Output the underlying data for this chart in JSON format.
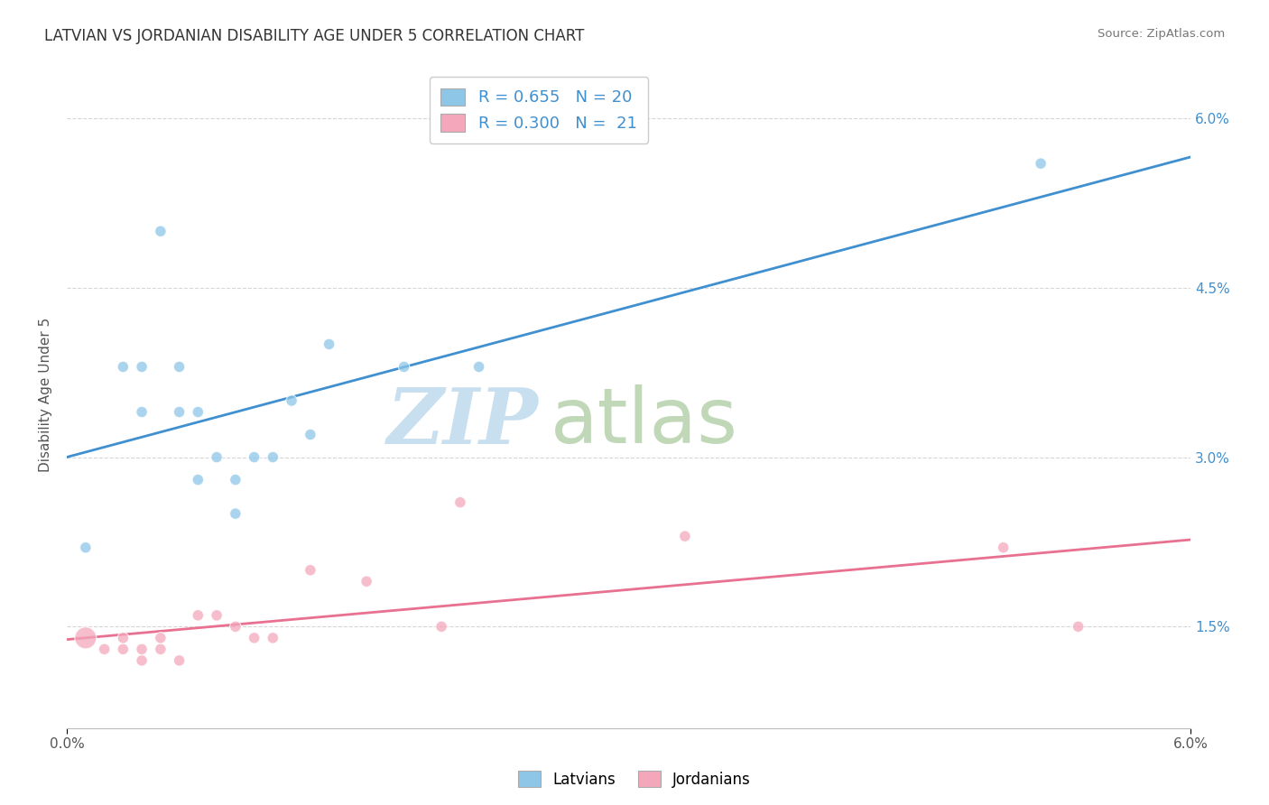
{
  "title": "LATVIAN VS JORDANIAN DISABILITY AGE UNDER 5 CORRELATION CHART",
  "source": "Source: ZipAtlas.com",
  "ylabel": "Disability Age Under 5",
  "latvian_color": "#8ec6e8",
  "jordanian_color": "#f4a7bb",
  "latvian_line_color": "#4090d0",
  "jordanian_line_color": "#e87090",
  "legend_latvian_label": "R = 0.655   N = 20",
  "legend_jordanian_label": "R = 0.300   N =  21",
  "bottom_legend_latvian": "Latvians",
  "bottom_legend_jordanian": "Jordanians",
  "latvian_x": [
    0.001,
    0.003,
    0.004,
    0.004,
    0.005,
    0.006,
    0.006,
    0.007,
    0.007,
    0.008,
    0.009,
    0.009,
    0.01,
    0.011,
    0.012,
    0.013,
    0.014,
    0.018,
    0.022,
    0.052
  ],
  "latvian_y": [
    0.022,
    0.038,
    0.038,
    0.034,
    0.05,
    0.034,
    0.038,
    0.034,
    0.028,
    0.03,
    0.028,
    0.025,
    0.03,
    0.03,
    0.035,
    0.032,
    0.04,
    0.038,
    0.038,
    0.056
  ],
  "latvian_sizes": [
    80,
    80,
    80,
    80,
    80,
    80,
    80,
    80,
    80,
    80,
    80,
    80,
    80,
    80,
    80,
    80,
    80,
    80,
    80,
    80
  ],
  "jordanian_x": [
    0.001,
    0.002,
    0.003,
    0.003,
    0.004,
    0.004,
    0.005,
    0.005,
    0.006,
    0.007,
    0.008,
    0.009,
    0.01,
    0.011,
    0.013,
    0.016,
    0.02,
    0.021,
    0.033,
    0.05,
    0.054
  ],
  "jordanian_y": [
    0.014,
    0.013,
    0.013,
    0.014,
    0.012,
    0.013,
    0.013,
    0.014,
    0.012,
    0.016,
    0.016,
    0.015,
    0.014,
    0.014,
    0.02,
    0.019,
    0.015,
    0.026,
    0.023,
    0.022,
    0.015
  ],
  "jordanian_sizes": [
    300,
    80,
    80,
    80,
    80,
    80,
    80,
    80,
    80,
    80,
    80,
    80,
    80,
    80,
    80,
    80,
    80,
    80,
    80,
    80,
    80
  ],
  "xmin": 0.0,
  "xmax": 0.06,
  "ymin": 0.006,
  "ymax": 0.065,
  "ytick_vals": [
    0.015,
    0.03,
    0.045,
    0.06
  ],
  "xtick_vals": [
    0.0,
    0.06
  ],
  "background_color": "#ffffff",
  "grid_color": "#cccccc",
  "watermark_zip": "ZIP",
  "watermark_atlas": "atlas",
  "watermark_zip_color": "#c8dff0",
  "watermark_atlas_color": "#c0d8b8"
}
